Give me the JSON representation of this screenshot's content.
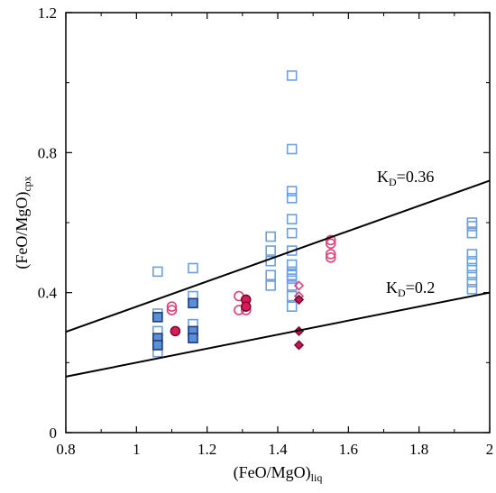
{
  "chart_data": {
    "type": "scatter",
    "xlabel": {
      "main": "(FeO/MgO)",
      "sub": "liq"
    },
    "ylabel": {
      "main": "(FeO/MgO)",
      "sub": "cpx"
    },
    "xlim": [
      0.8,
      2.0
    ],
    "ylim": [
      0,
      1.2
    ],
    "x_ticks": [
      "0.8",
      "1",
      "1.2",
      "1.4",
      "1.6",
      "1.8",
      "2"
    ],
    "x_tick_values": [
      0.8,
      1.0,
      1.2,
      1.4,
      1.6,
      1.8,
      2.0
    ],
    "y_ticks": [
      "0",
      "0.4",
      "0.8",
      "1.2"
    ],
    "y_tick_values": [
      0,
      0.4,
      0.8,
      1.2
    ],
    "grid": false,
    "legend": "none",
    "reference_lines": [
      {
        "label_main": "K",
        "label_sub": "D",
        "label_rest": "=0.36",
        "slope": 0.36,
        "color": "#000000"
      },
      {
        "label_main": "K",
        "label_sub": "D",
        "label_rest": "=0.2",
        "slope": 0.2,
        "color": "#000000"
      }
    ],
    "series": [
      {
        "marker": "square",
        "fill": "none",
        "stroke": "#6f9fdc",
        "points": [
          [
            1.06,
            0.46
          ],
          [
            1.06,
            0.34
          ],
          [
            1.06,
            0.29
          ],
          [
            1.06,
            0.25
          ],
          [
            1.06,
            0.23
          ],
          [
            1.16,
            0.47
          ],
          [
            1.16,
            0.39
          ],
          [
            1.16,
            0.31
          ],
          [
            1.38,
            0.56
          ],
          [
            1.38,
            0.52
          ],
          [
            1.38,
            0.49
          ],
          [
            1.38,
            0.45
          ],
          [
            1.38,
            0.42
          ],
          [
            1.44,
            1.02
          ],
          [
            1.44,
            0.81
          ],
          [
            1.44,
            0.69
          ],
          [
            1.44,
            0.67
          ],
          [
            1.44,
            0.61
          ],
          [
            1.44,
            0.57
          ],
          [
            1.44,
            0.52
          ],
          [
            1.44,
            0.48
          ],
          [
            1.44,
            0.46
          ],
          [
            1.44,
            0.45
          ],
          [
            1.44,
            0.44
          ],
          [
            1.44,
            0.42
          ],
          [
            1.44,
            0.39
          ],
          [
            1.44,
            0.36
          ],
          [
            1.95,
            0.6
          ],
          [
            1.95,
            0.59
          ],
          [
            1.95,
            0.57
          ],
          [
            1.95,
            0.51
          ],
          [
            1.95,
            0.49
          ],
          [
            1.95,
            0.47
          ],
          [
            1.95,
            0.45
          ],
          [
            1.95,
            0.43
          ],
          [
            1.95,
            0.41
          ]
        ]
      },
      {
        "marker": "square",
        "fill": "#5b8fd6",
        "stroke": "#1f3d7a",
        "points": [
          [
            1.06,
            0.33
          ],
          [
            1.06,
            0.27
          ],
          [
            1.06,
            0.25
          ],
          [
            1.16,
            0.37
          ],
          [
            1.16,
            0.29
          ],
          [
            1.16,
            0.27
          ]
        ]
      },
      {
        "marker": "circle",
        "fill": "none",
        "stroke": "#e0407a",
        "points": [
          [
            1.1,
            0.36
          ],
          [
            1.1,
            0.35
          ],
          [
            1.29,
            0.39
          ],
          [
            1.29,
            0.35
          ],
          [
            1.31,
            0.35
          ],
          [
            1.55,
            0.55
          ],
          [
            1.55,
            0.54
          ],
          [
            1.55,
            0.51
          ],
          [
            1.55,
            0.5
          ]
        ]
      },
      {
        "marker": "circle",
        "fill": "#d81b5a",
        "stroke": "#7a0a30",
        "points": [
          [
            1.11,
            0.29
          ],
          [
            1.31,
            0.38
          ],
          [
            1.31,
            0.36
          ]
        ]
      },
      {
        "marker": "diamond",
        "fill": "none",
        "stroke": "#e0407a",
        "points": [
          [
            1.46,
            0.42
          ],
          [
            1.46,
            0.39
          ]
        ]
      },
      {
        "marker": "diamond",
        "fill": "#c8175a",
        "stroke": "#7a0a30",
        "points": [
          [
            1.46,
            0.38
          ],
          [
            1.46,
            0.29
          ],
          [
            1.46,
            0.25
          ]
        ]
      }
    ]
  }
}
